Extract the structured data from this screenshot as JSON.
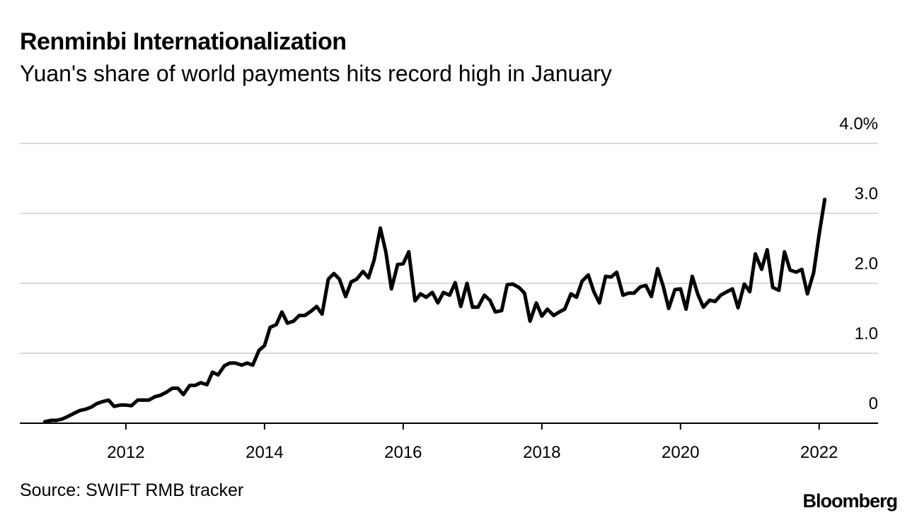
{
  "chart_data": {
    "type": "line",
    "title": "Renminbi Internationalization",
    "subtitle": "Yuan's share of world payments hits record high in January",
    "xlabel": "",
    "ylabel": "",
    "source": "Source: SWIFT RMB tracker",
    "brand": "Bloomberg",
    "xlim": [
      2010.47,
      2022.85
    ],
    "ylim": [
      0,
      4.0
    ],
    "y_ticks": [
      {
        "value": 0,
        "label": "0"
      },
      {
        "value": 1.0,
        "label": "1.0"
      },
      {
        "value": 2.0,
        "label": "2.0"
      },
      {
        "value": 3.0,
        "label": "3.0"
      },
      {
        "value": 4.0,
        "label": "4.0%"
      }
    ],
    "x_ticks": [
      {
        "value": 2012,
        "label": "2012"
      },
      {
        "value": 2014,
        "label": "2014"
      },
      {
        "value": 2016,
        "label": "2016"
      },
      {
        "value": 2018,
        "label": "2018"
      },
      {
        "value": 2020,
        "label": "2020"
      },
      {
        "value": 2022,
        "label": "2022"
      }
    ],
    "grid": true,
    "series": [
      {
        "name": "Yuan share of world payments (%)",
        "color": "#000000",
        "x": [
          2010.83,
          2010.92,
          2011.0,
          2011.08,
          2011.17,
          2011.25,
          2011.33,
          2011.42,
          2011.5,
          2011.58,
          2011.67,
          2011.75,
          2011.83,
          2011.92,
          2012.0,
          2012.08,
          2012.17,
          2012.25,
          2012.33,
          2012.42,
          2012.5,
          2012.58,
          2012.67,
          2012.75,
          2012.83,
          2012.92,
          2013.0,
          2013.08,
          2013.17,
          2013.25,
          2013.33,
          2013.42,
          2013.5,
          2013.58,
          2013.67,
          2013.75,
          2013.83,
          2013.92,
          2014.0,
          2014.08,
          2014.17,
          2014.25,
          2014.33,
          2014.42,
          2014.5,
          2014.58,
          2014.67,
          2014.75,
          2014.83,
          2014.92,
          2015.0,
          2015.08,
          2015.17,
          2015.25,
          2015.33,
          2015.42,
          2015.5,
          2015.58,
          2015.67,
          2015.75,
          2015.83,
          2015.92,
          2016.0,
          2016.08,
          2016.17,
          2016.25,
          2016.33,
          2016.42,
          2016.5,
          2016.58,
          2016.67,
          2016.75,
          2016.83,
          2016.92,
          2017.0,
          2017.08,
          2017.17,
          2017.25,
          2017.33,
          2017.42,
          2017.5,
          2017.58,
          2017.67,
          2017.75,
          2017.83,
          2017.92,
          2018.0,
          2018.08,
          2018.17,
          2018.25,
          2018.33,
          2018.42,
          2018.5,
          2018.58,
          2018.67,
          2018.75,
          2018.83,
          2018.92,
          2019.0,
          2019.08,
          2019.17,
          2019.25,
          2019.33,
          2019.42,
          2019.5,
          2019.58,
          2019.67,
          2019.75,
          2019.83,
          2019.92,
          2020.0,
          2020.08,
          2020.17,
          2020.25,
          2020.33,
          2020.42,
          2020.5,
          2020.58,
          2020.67,
          2020.75,
          2020.83,
          2020.92,
          2021.0,
          2021.08,
          2021.17,
          2021.25,
          2021.33,
          2021.42,
          2021.5,
          2021.58,
          2021.67,
          2021.75,
          2021.83,
          2021.92,
          2022.0,
          2022.08
        ],
        "values": [
          0.02,
          0.04,
          0.04,
          0.06,
          0.1,
          0.14,
          0.18,
          0.2,
          0.23,
          0.28,
          0.31,
          0.33,
          0.24,
          0.26,
          0.26,
          0.25,
          0.33,
          0.33,
          0.33,
          0.38,
          0.4,
          0.44,
          0.5,
          0.5,
          0.41,
          0.54,
          0.54,
          0.58,
          0.55,
          0.73,
          0.69,
          0.82,
          0.86,
          0.86,
          0.83,
          0.86,
          0.83,
          1.04,
          1.11,
          1.37,
          1.41,
          1.59,
          1.43,
          1.46,
          1.54,
          1.54,
          1.6,
          1.67,
          1.56,
          2.06,
          2.14,
          2.06,
          1.81,
          2.02,
          2.06,
          2.17,
          2.08,
          2.33,
          2.79,
          2.45,
          1.92,
          2.27,
          2.28,
          2.45,
          1.75,
          1.85,
          1.8,
          1.87,
          1.72,
          1.87,
          1.83,
          2.01,
          1.67,
          2.0,
          1.66,
          1.66,
          1.83,
          1.76,
          1.59,
          1.61,
          1.98,
          1.99,
          1.94,
          1.86,
          1.46,
          1.72,
          1.53,
          1.63,
          1.54,
          1.59,
          1.63,
          1.85,
          1.8,
          2.03,
          2.12,
          1.88,
          1.72,
          2.1,
          2.09,
          2.16,
          1.83,
          1.86,
          1.86,
          1.95,
          1.97,
          1.81,
          2.21,
          1.96,
          1.64,
          1.91,
          1.92,
          1.63,
          2.1,
          1.84,
          1.66,
          1.76,
          1.74,
          1.83,
          1.88,
          1.92,
          1.65,
          1.99,
          1.88,
          2.42,
          2.2,
          2.48,
          1.94,
          1.9,
          2.45,
          2.19,
          2.16,
          2.2,
          1.85,
          2.15,
          2.7,
          3.2
        ]
      }
    ]
  }
}
